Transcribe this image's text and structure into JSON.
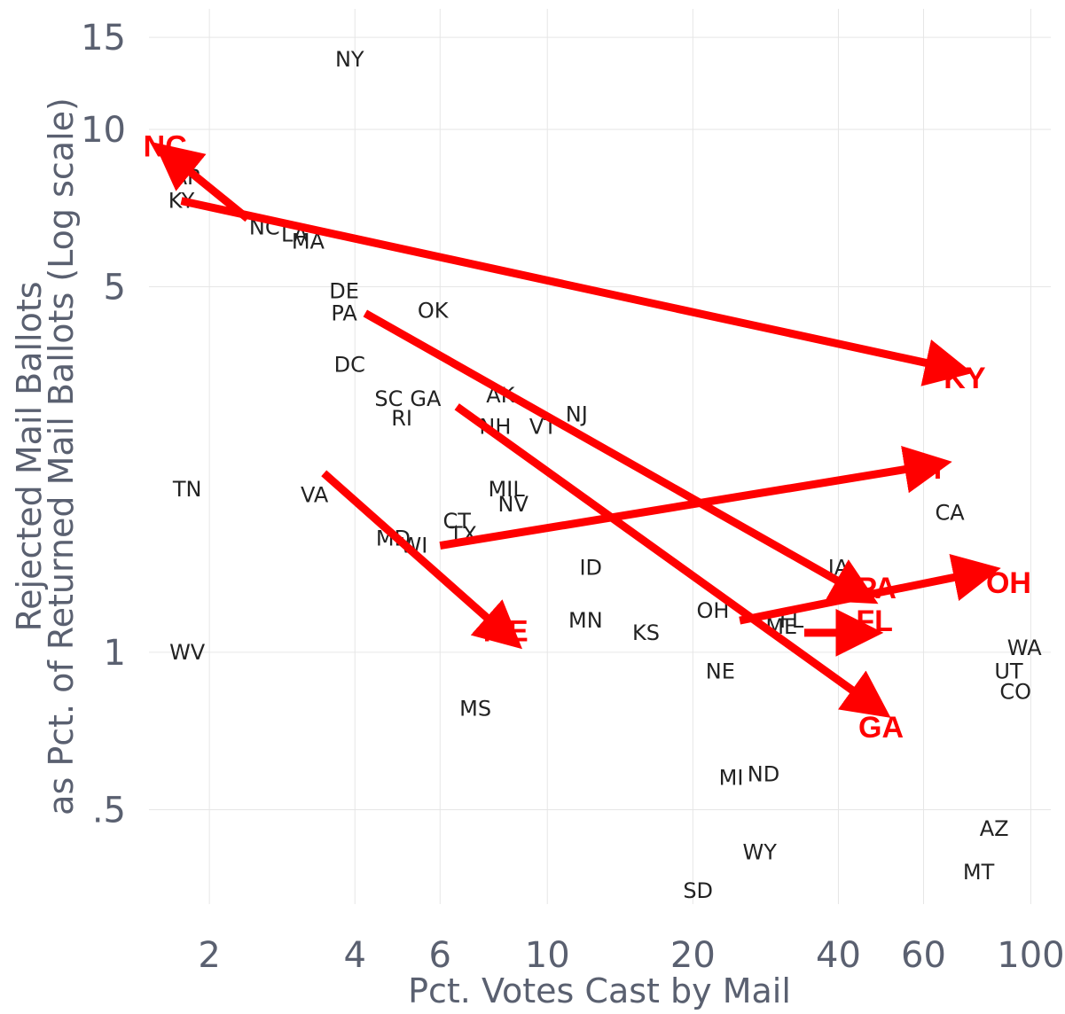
{
  "chart_data": {
    "type": "scatter",
    "title": "",
    "xlabel": "Pct. Votes Cast by Mail",
    "ylabel_lines": [
      "Rejected Mail Ballots",
      "as Pct. of Returned Mail Ballots (Log scale)"
    ],
    "x_scale": "log",
    "y_scale": "log",
    "xlim": [
      1.5,
      110
    ],
    "ylim": [
      0.33,
      17
    ],
    "x_ticks": [
      {
        "value": 2,
        "label": "2"
      },
      {
        "value": 4,
        "label": "4"
      },
      {
        "value": 6,
        "label": "6"
      },
      {
        "value": 10,
        "label": "10"
      },
      {
        "value": 20,
        "label": "20"
      },
      {
        "value": 40,
        "label": "40"
      },
      {
        "value": 60,
        "label": "60"
      },
      {
        "value": 100,
        "label": "100"
      }
    ],
    "y_ticks": [
      {
        "value": 0.5,
        "label": ".5"
      },
      {
        "value": 1,
        "label": "1"
      },
      {
        "value": 5,
        "label": "5"
      },
      {
        "value": 10,
        "label": "10"
      },
      {
        "value": 15,
        "label": "15"
      }
    ],
    "grid": true,
    "points": [
      {
        "label": "NY",
        "x": 3.9,
        "y": 13.6
      },
      {
        "label": "AR",
        "x": 1.8,
        "y": 8.1
      },
      {
        "label": "KY",
        "x": 1.75,
        "y": 7.3
      },
      {
        "label": "NC",
        "x": 2.6,
        "y": 6.5
      },
      {
        "label": "LA",
        "x": 3.0,
        "y": 6.3
      },
      {
        "label": "MA",
        "x": 3.2,
        "y": 6.1
      },
      {
        "label": "DE",
        "x": 3.8,
        "y": 4.9
      },
      {
        "label": "PA",
        "x": 3.8,
        "y": 4.45
      },
      {
        "label": "OK",
        "x": 5.8,
        "y": 4.5
      },
      {
        "label": "DC",
        "x": 3.9,
        "y": 3.55
      },
      {
        "label": "SC",
        "x": 4.7,
        "y": 3.05
      },
      {
        "label": "GA",
        "x": 5.6,
        "y": 3.05
      },
      {
        "label": "RI",
        "x": 5.0,
        "y": 2.8
      },
      {
        "label": "AK",
        "x": 8.0,
        "y": 3.1
      },
      {
        "label": "NH",
        "x": 7.8,
        "y": 2.7
      },
      {
        "label": "VT",
        "x": 9.8,
        "y": 2.7
      },
      {
        "label": "NJ",
        "x": 11.5,
        "y": 2.85
      },
      {
        "label": "TN",
        "x": 1.8,
        "y": 2.05
      },
      {
        "label": "VA",
        "x": 3.3,
        "y": 2.0
      },
      {
        "label": "MI",
        "x": 8.0,
        "y": 2.05
      },
      {
        "label": "IL",
        "x": 8.6,
        "y": 2.05
      },
      {
        "label": "NV",
        "x": 8.5,
        "y": 1.92
      },
      {
        "label": "CT",
        "x": 6.5,
        "y": 1.78
      },
      {
        "label": "TX",
        "x": 6.7,
        "y": 1.68
      },
      {
        "label": "MD",
        "x": 4.8,
        "y": 1.65
      },
      {
        "label": "WI",
        "x": 5.3,
        "y": 1.6
      },
      {
        "label": "ID",
        "x": 12.3,
        "y": 1.45
      },
      {
        "label": "IA",
        "x": 40.0,
        "y": 1.45
      },
      {
        "label": "CA",
        "x": 68.0,
        "y": 1.85
      },
      {
        "label": "MN",
        "x": 12.0,
        "y": 1.15
      },
      {
        "label": "KS",
        "x": 16.0,
        "y": 1.09
      },
      {
        "label": "OH",
        "x": 22.0,
        "y": 1.2
      },
      {
        "label": "ME",
        "x": 30.5,
        "y": 1.12
      },
      {
        "label": "FL",
        "x": 32.0,
        "y": 1.15
      },
      {
        "label": "NE",
        "x": 22.8,
        "y": 0.92
      },
      {
        "label": "WA",
        "x": 97.0,
        "y": 1.02
      },
      {
        "label": "UT",
        "x": 90.0,
        "y": 0.92
      },
      {
        "label": "CO",
        "x": 93.0,
        "y": 0.84
      },
      {
        "label": "WV",
        "x": 1.8,
        "y": 1.0
      },
      {
        "label": "MS",
        "x": 7.1,
        "y": 0.78
      },
      {
        "label": "MI",
        "x": 24.0,
        "y": 0.575
      },
      {
        "label": "ND",
        "x": 28.0,
        "y": 0.585
      },
      {
        "label": "AZ",
        "x": 84.0,
        "y": 0.46
      },
      {
        "label": "WY",
        "x": 27.5,
        "y": 0.415
      },
      {
        "label": "MT",
        "x": 78.0,
        "y": 0.38
      },
      {
        "label": "SD",
        "x": 20.5,
        "y": 0.35
      }
    ],
    "annotations": {
      "color": "#ff0000",
      "arrows": [
        {
          "from": [
            1.75,
            7.3
          ],
          "to": [
            63,
            3.55
          ]
        },
        {
          "from": [
            2.4,
            6.75
          ],
          "to": [
            1.78,
            8.45
          ]
        },
        {
          "from": [
            4.2,
            4.45
          ],
          "to": [
            41,
            1.35
          ]
        },
        {
          "from": [
            6.5,
            2.95
          ],
          "to": [
            44,
            0.83
          ]
        },
        {
          "from": [
            3.45,
            2.2
          ],
          "to": [
            7.7,
            1.14
          ]
        },
        {
          "from": [
            6.0,
            1.6
          ],
          "to": [
            57,
            2.25
          ]
        },
        {
          "from": [
            25,
            1.15
          ],
          "to": [
            72,
            1.4
          ]
        },
        {
          "from": [
            34,
            1.09
          ],
          "to": [
            41,
            1.09
          ]
        }
      ],
      "labels": [
        {
          "text": "NC",
          "x": 1.62,
          "y": 9.3
        },
        {
          "text": "KY",
          "x": 73,
          "y": 3.35
        },
        {
          "text": "WI",
          "x": 60,
          "y": 2.25
        },
        {
          "text": "PA",
          "x": 48,
          "y": 1.33
        },
        {
          "text": "OH",
          "x": 90,
          "y": 1.36
        },
        {
          "text": "FL",
          "x": 47.5,
          "y": 1.15
        },
        {
          "text": "ME",
          "x": 8.2,
          "y": 1.1
        },
        {
          "text": "GA",
          "x": 49,
          "y": 0.72
        }
      ]
    }
  }
}
